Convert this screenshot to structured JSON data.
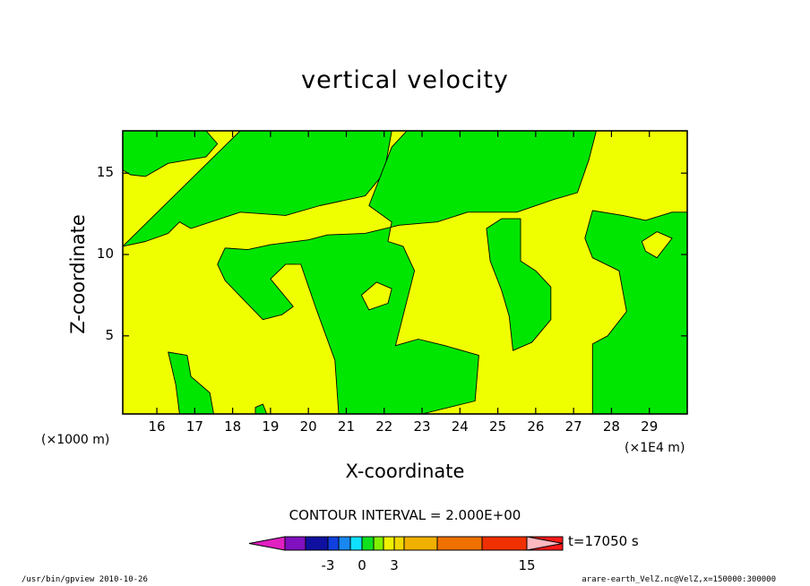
{
  "chart_data": {
    "type": "filled-contour",
    "title": "vertical velocity",
    "xlabel": "X-coordinate",
    "ylabel": "Z-coordinate",
    "x_unit_label": "(×1E4 m)",
    "y_unit_label": "(×1000 m)",
    "x_ticks": [
      "16",
      "17",
      "18",
      "19",
      "20",
      "21",
      "22",
      "23",
      "24",
      "25",
      "26",
      "27",
      "28",
      "29"
    ],
    "y_ticks": [
      "5",
      "10",
      "15"
    ],
    "xlim": [
      15.1,
      30.0
    ],
    "ylim": [
      0.2,
      17.6
    ],
    "contour_interval_text": "CONTOUR INTERVAL = 2.000E+00",
    "time_label": "t=17050 s",
    "colorbar": {
      "tick_labels": [
        "-3",
        "0",
        "3",
        "15"
      ],
      "colors": [
        "#e020c0",
        "#8010c0",
        "#1010a0",
        "#1040e0",
        "#1888f0",
        "#10e0ff",
        "#10e020",
        "#80f000",
        "#f0f000",
        "#f0d800",
        "#f0b000",
        "#f07000",
        "#f03000",
        "#ff1818",
        "#ff8080",
        "#ffb8c0"
      ]
    },
    "field_colors": {
      "positive": "#f0ff00",
      "negative": "#00e600"
    },
    "regions_negative": [
      [
        [
          15.1,
          17.6
        ],
        [
          17.3,
          17.6
        ],
        [
          17.6,
          16.8
        ],
        [
          17.3,
          16.0
        ],
        [
          16.3,
          15.6
        ],
        [
          15.7,
          14.8
        ],
        [
          15.3,
          14.9
        ],
        [
          15.1,
          15.2
        ]
      ],
      [
        [
          18.2,
          17.6
        ],
        [
          22.2,
          17.6
        ],
        [
          22.0,
          15.0
        ],
        [
          21.5,
          13.6
        ],
        [
          20.3,
          13.0
        ],
        [
          19.4,
          12.4
        ],
        [
          18.2,
          12.6
        ],
        [
          16.9,
          11.6
        ],
        [
          16.6,
          12.0
        ],
        [
          16.3,
          11.3
        ],
        [
          15.7,
          10.8
        ],
        [
          15.1,
          10.5
        ]
      ],
      [
        [
          22.6,
          17.6
        ],
        [
          27.6,
          17.6
        ],
        [
          27.4,
          15.8
        ],
        [
          27.1,
          13.8
        ],
        [
          26.5,
          13.4
        ],
        [
          25.5,
          12.6
        ],
        [
          24.2,
          12.6
        ],
        [
          23.4,
          12.0
        ],
        [
          22.4,
          11.8
        ],
        [
          21.5,
          11.3
        ],
        [
          20.5,
          11.2
        ],
        [
          20.0,
          10.9
        ],
        [
          19.0,
          10.6
        ],
        [
          18.4,
          10.3
        ],
        [
          17.8,
          10.4
        ],
        [
          17.6,
          9.4
        ],
        [
          17.8,
          8.4
        ],
        [
          18.3,
          7.2
        ],
        [
          18.8,
          6.0
        ],
        [
          19.3,
          6.3
        ],
        [
          19.6,
          6.8
        ],
        [
          19.0,
          8.5
        ],
        [
          19.4,
          9.4
        ],
        [
          19.8,
          9.4
        ],
        [
          20.2,
          6.7
        ],
        [
          20.7,
          3.5
        ],
        [
          20.8,
          0.2
        ],
        [
          23.0,
          0.2
        ],
        [
          24.4,
          1.0
        ],
        [
          24.5,
          3.8
        ],
        [
          23.6,
          4.4
        ],
        [
          22.9,
          4.8
        ],
        [
          22.3,
          4.4
        ],
        [
          22.8,
          9.0
        ],
        [
          22.5,
          10.5
        ],
        [
          22.1,
          10.8
        ],
        [
          22.2,
          12.0
        ],
        [
          21.6,
          13.0
        ],
        [
          21.8,
          14.2
        ],
        [
          22.2,
          16.6
        ]
      ],
      [
        [
          25.1,
          12.2
        ],
        [
          25.6,
          12.2
        ],
        [
          25.6,
          9.6
        ],
        [
          26.0,
          9.0
        ],
        [
          26.4,
          8.0
        ],
        [
          26.4,
          6.0
        ],
        [
          25.9,
          4.6
        ],
        [
          25.4,
          4.1
        ],
        [
          25.3,
          6.2
        ],
        [
          25.1,
          7.8
        ],
        [
          24.8,
          9.6
        ],
        [
          24.7,
          11.6
        ]
      ],
      [
        [
          27.5,
          12.7
        ],
        [
          28.3,
          12.4
        ],
        [
          28.9,
          12.1
        ],
        [
          29.6,
          12.6
        ],
        [
          30.0,
          12.6
        ],
        [
          30.0,
          0.2
        ],
        [
          27.5,
          0.2
        ],
        [
          27.5,
          4.5
        ],
        [
          27.9,
          5.0
        ],
        [
          28.4,
          6.5
        ],
        [
          28.2,
          9.0
        ],
        [
          27.5,
          9.8
        ],
        [
          27.3,
          11.0
        ]
      ],
      [
        [
          16.6,
          0.2
        ],
        [
          17.5,
          0.2
        ],
        [
          17.4,
          1.5
        ],
        [
          16.9,
          2.5
        ],
        [
          16.8,
          3.8
        ],
        [
          16.3,
          4.0
        ],
        [
          16.5,
          2.0
        ]
      ],
      [
        [
          18.6,
          0.2
        ],
        [
          18.9,
          0.2
        ],
        [
          18.8,
          0.8
        ],
        [
          18.6,
          0.6
        ]
      ]
    ],
    "regions_positive": [
      [
        [
          28.8,
          10.8
        ],
        [
          29.2,
          11.4
        ],
        [
          29.6,
          11.0
        ],
        [
          29.2,
          9.8
        ],
        [
          28.9,
          10.2
        ]
      ],
      [
        [
          21.4,
          7.5
        ],
        [
          21.8,
          8.3
        ],
        [
          22.2,
          7.9
        ],
        [
          22.1,
          7.0
        ],
        [
          21.6,
          6.6
        ]
      ]
    ]
  },
  "footer": {
    "left": "/usr/bin/gpview  2010-10-26",
    "right": "arare-earth_VelZ.nc@VelZ,x=150000:300000"
  }
}
